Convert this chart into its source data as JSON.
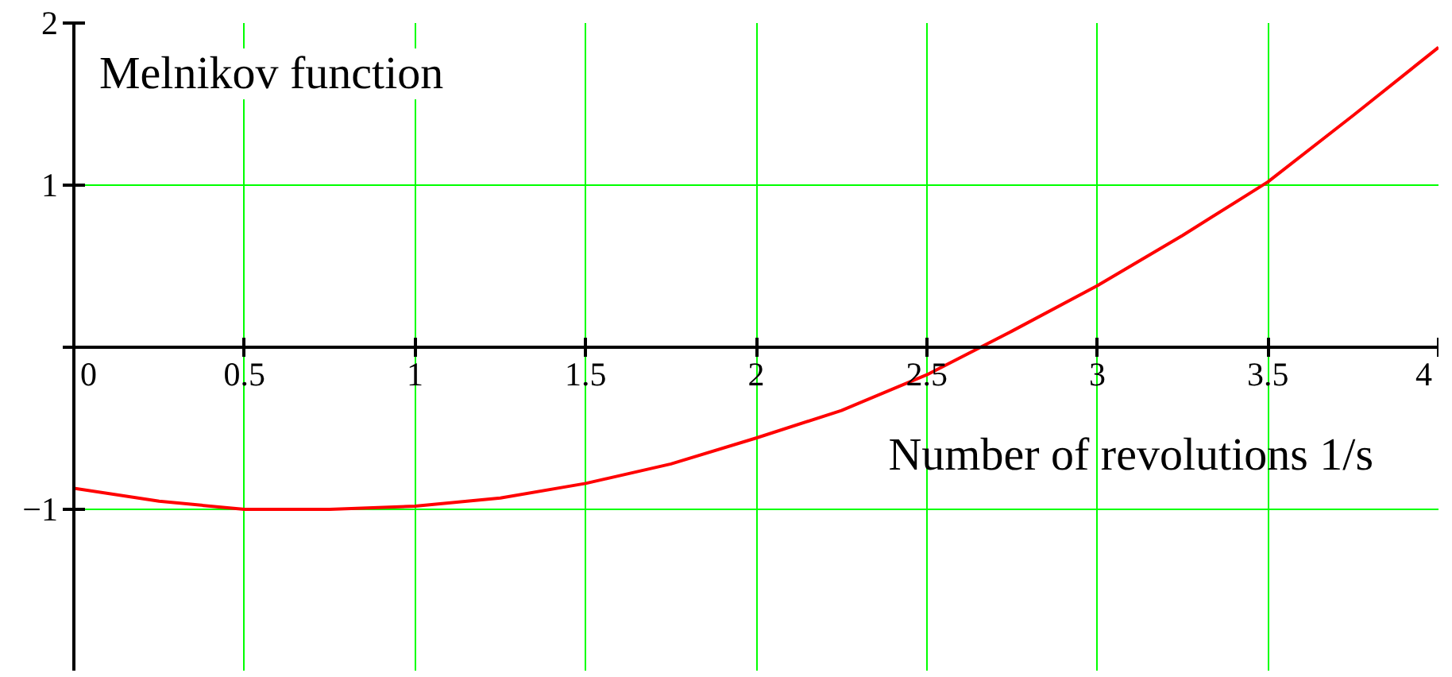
{
  "chart_data": {
    "type": "line",
    "xlabel": "Number of revolutions 1/s",
    "ylabel": "Melnikov function",
    "x": [
      0,
      0.25,
      0.5,
      0.75,
      1,
      1.25,
      1.5,
      1.75,
      2,
      2.25,
      2.5,
      2.75,
      3,
      3.25,
      3.5,
      3.75,
      4
    ],
    "series": [
      {
        "color": "#ff0000",
        "values": [
          -0.87,
          -0.95,
          -1.0,
          -1.0,
          -0.98,
          -0.93,
          -0.84,
          -0.72,
          -0.56,
          -0.39,
          -0.17,
          0.1,
          0.38,
          0.69,
          1.02,
          1.43,
          1.85
        ]
      }
    ],
    "xlim": [
      0,
      4
    ],
    "ylim": [
      -2,
      2
    ],
    "xticks": [
      0,
      0.5,
      1,
      1.5,
      2,
      2.5,
      3,
      3.5,
      4
    ],
    "yticks": [
      -1,
      {
        "value": 0,
        "label": null
      },
      1,
      2
    ],
    "grid": true,
    "line_style": "solid"
  }
}
